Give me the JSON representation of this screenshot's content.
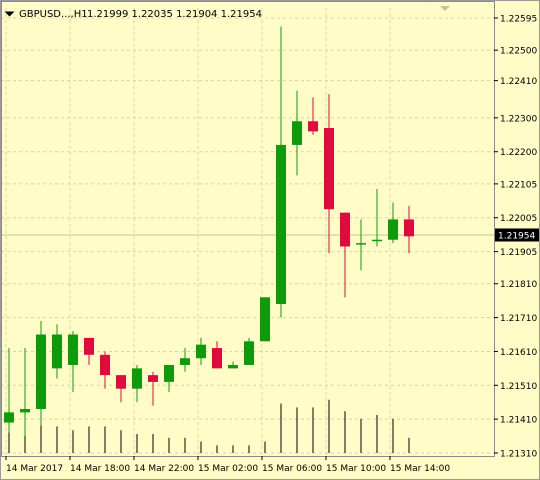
{
  "header": {
    "symbol": "GBPUSD...,H1",
    "ohlc": "1.21999 1.22035 1.21904 1.21954",
    "collapse_icon": "triangle-down-icon"
  },
  "colors": {
    "background": "#fffcc8",
    "bull": "#0d9b0d",
    "bear": "#e00a3c",
    "grid": "#d9d4a6",
    "price_line": "#b9c8a8",
    "price_label_bg": "#000000",
    "price_label_fg": "#ffffff"
  },
  "price_axis": {
    "labels": [
      "1.22595",
      "1.22500",
      "1.22410",
      "1.22300",
      "1.22200",
      "1.22105",
      "1.22005",
      "1.21905",
      "1.21810",
      "1.21710",
      "1.21610",
      "1.21510",
      "1.21410",
      "1.21310"
    ],
    "current_price": "1.21954"
  },
  "time_axis": {
    "labels": [
      "14 Mar 2017",
      "14 Mar 18:00",
      "14 Mar 22:00",
      "15 Mar 02:00",
      "15 Mar 06:00",
      "15 Mar 10:00",
      "15 Mar 14:00"
    ]
  },
  "chart_data": {
    "type": "candlestick",
    "symbol": "GBPUSD",
    "timeframe": "H1",
    "ylim": [
      1.2127,
      1.2265
    ],
    "grid": true,
    "candles": [
      {
        "o": 1.214,
        "h": 1.2162,
        "l": 1.2137,
        "c": 1.2143
      },
      {
        "o": 1.2143,
        "h": 1.2162,
        "l": 1.2136,
        "c": 1.2144
      },
      {
        "o": 1.2144,
        "h": 1.217,
        "l": 1.2139,
        "c": 1.2166
      },
      {
        "o": 1.2156,
        "h": 1.2169,
        "l": 1.2153,
        "c": 1.2166
      },
      {
        "o": 1.2157,
        "h": 1.2167,
        "l": 1.2149,
        "c": 1.2166
      },
      {
        "o": 1.2165,
        "h": 1.2165,
        "l": 1.2157,
        "c": 1.216
      },
      {
        "o": 1.216,
        "h": 1.2161,
        "l": 1.215,
        "c": 1.2154
      },
      {
        "o": 1.2154,
        "h": 1.2154,
        "l": 1.2146,
        "c": 1.215
      },
      {
        "o": 1.215,
        "h": 1.2157,
        "l": 1.2146,
        "c": 1.2156
      },
      {
        "o": 1.2154,
        "h": 1.2155,
        "l": 1.2145,
        "c": 1.2152
      },
      {
        "o": 1.2152,
        "h": 1.2157,
        "l": 1.2149,
        "c": 1.2157
      },
      {
        "o": 1.2157,
        "h": 1.2162,
        "l": 1.2155,
        "c": 1.2159
      },
      {
        "o": 1.2159,
        "h": 1.2165,
        "l": 1.2157,
        "c": 1.2163
      },
      {
        "o": 1.2162,
        "h": 1.2164,
        "l": 1.2156,
        "c": 1.2156
      },
      {
        "o": 1.2156,
        "h": 1.2158,
        "l": 1.2156,
        "c": 1.2157
      },
      {
        "o": 1.2157,
        "h": 1.2165,
        "l": 1.2157,
        "c": 1.2164
      },
      {
        "o": 1.2164,
        "h": 1.2177,
        "l": 1.2164,
        "c": 1.2177
      },
      {
        "o": 1.2175,
        "h": 1.2257,
        "l": 1.2171,
        "c": 1.2222
      },
      {
        "o": 1.2222,
        "h": 1.2238,
        "l": 1.2213,
        "c": 1.2229
      },
      {
        "o": 1.2229,
        "h": 1.2236,
        "l": 1.2225,
        "c": 1.2226
      },
      {
        "o": 1.2227,
        "h": 1.2237,
        "l": 1.219,
        "c": 1.2203
      },
      {
        "o": 1.2202,
        "h": 1.2202,
        "l": 1.2177,
        "c": 1.2192
      },
      {
        "o": 1.2193,
        "h": 1.22,
        "l": 1.2185,
        "c": 1.2193
      },
      {
        "o": 1.2194,
        "h": 1.2209,
        "l": 1.2192,
        "c": 1.2194
      },
      {
        "o": 1.2194,
        "h": 1.2205,
        "l": 1.2193,
        "c": 1.22
      },
      {
        "o": 1.22,
        "h": 1.2204,
        "l": 1.219,
        "c": 1.2195
      }
    ],
    "volumes": [
      8,
      9,
      10,
      7,
      6,
      7,
      7,
      6,
      5,
      5,
      4,
      4,
      3,
      2,
      2,
      2,
      3,
      13,
      12,
      12,
      14,
      11,
      9,
      10,
      9,
      4
    ]
  }
}
